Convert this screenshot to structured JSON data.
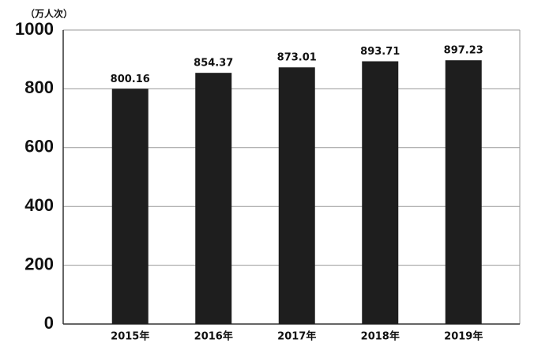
{
  "chart_data": {
    "type": "bar",
    "unit_label": "（万人次）",
    "categories": [
      "2015年",
      "2016年",
      "2017年",
      "2018年",
      "2019年"
    ],
    "values": [
      800.16,
      854.37,
      873.01,
      893.71,
      897.23
    ],
    "color": "#1e1e1e",
    "ylim": [
      0,
      1000
    ],
    "yticks": [
      0,
      200,
      400,
      600,
      800,
      1000
    ],
    "grid": true
  }
}
